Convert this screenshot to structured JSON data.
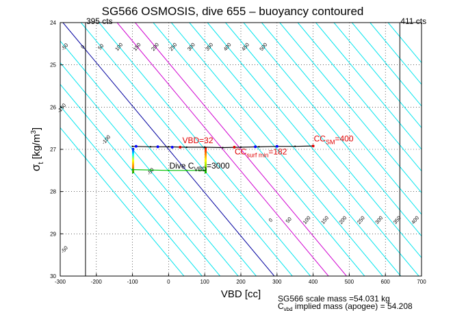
{
  "chart_data": {
    "type": "line",
    "title": "SG566 OSMOSIS, dive 655 – buoyancy contoured",
    "xlabel": "VBD [cc]",
    "ylabel": "σt [kg/m³]",
    "ylabel_parts": {
      "symbol": "σ",
      "sub": "t",
      "unit_pre": " [kg/m",
      "unit_sup": "3",
      "unit_post": "]"
    },
    "xlim": [
      -300,
      700
    ],
    "ylim": [
      24,
      30
    ],
    "y_reversed": true,
    "grid": true,
    "xticks": [
      -300,
      -200,
      -100,
      0,
      100,
      200,
      300,
      400,
      500,
      600,
      700
    ],
    "yticks": [
      24,
      25,
      26,
      27,
      28,
      29,
      30
    ],
    "contours": {
      "slope_cc_per_sigma": 97.5,
      "ref_sigma": 27,
      "levels": [
        -250,
        -200,
        -150,
        -100,
        -50,
        0,
        50,
        100,
        150,
        200,
        250,
        300,
        350,
        400,
        450,
        500,
        550,
        600,
        650,
        700,
        750,
        800,
        850,
        900
      ],
      "highlight": {
        "0": "#0000a0",
        "150": "#d000d0",
        "200": "#d000d0"
      },
      "default_color": "#00e5ee"
    },
    "top_labels": [
      "-200",
      "-150",
      "-100",
      "-50",
      "0",
      "50",
      "100",
      "150",
      "200",
      "250",
      "300",
      "350",
      "400",
      "450",
      "500"
    ],
    "bottom_labels": [
      "0",
      "50",
      "100",
      "150",
      "200",
      "250",
      "300",
      "350",
      "400",
      "450",
      "500"
    ],
    "left_labels": [
      "-200",
      "-150",
      "-100",
      "-50"
    ],
    "bottom_first_label": "-50",
    "vlines": [
      {
        "x": -230,
        "label": "395 cts"
      },
      {
        "x": 640,
        "label": "411 cts"
      }
    ],
    "series": [
      {
        "color": "#000000",
        "points": [
          [
            -100,
            26.93
          ],
          [
            -50,
            26.94
          ],
          [
            0,
            26.94
          ],
          [
            50,
            26.95
          ],
          [
            100,
            26.95
          ],
          [
            150,
            26.96
          ],
          [
            200,
            26.95
          ],
          [
            250,
            26.94
          ],
          [
            300,
            26.93
          ],
          [
            350,
            26.93
          ],
          [
            400,
            26.92
          ]
        ]
      },
      {
        "color": "#00c000",
        "points": [
          [
            -100,
            27.48
          ],
          [
            -50,
            27.49
          ],
          [
            0,
            27.5
          ],
          [
            50,
            27.5
          ],
          [
            100,
            27.5
          ]
        ]
      }
    ],
    "markers": [
      {
        "x": -90,
        "y": 26.93,
        "color": "#0000ff"
      },
      {
        "x": -30,
        "y": 26.94,
        "color": "#0000ff"
      },
      {
        "x": 10,
        "y": 26.95,
        "color": "#0000ff"
      },
      {
        "x": 32,
        "y": 26.95,
        "color": "#e00000"
      },
      {
        "x": 182,
        "y": 26.95,
        "color": "#e00000"
      },
      {
        "x": 240,
        "y": 26.94,
        "color": "#0000ff"
      },
      {
        "x": 300,
        "y": 26.93,
        "color": "#0000ff"
      },
      {
        "x": 400,
        "y": 26.92,
        "color": "#e00000"
      }
    ],
    "annotations": [
      {
        "main": "VBD",
        "sub": "",
        "value": "=32",
        "x": 38,
        "y": 26.85,
        "color": "red"
      },
      {
        "main": "CC",
        "sub": "surf min",
        "value": "=182",
        "x": 183,
        "y": 27.12,
        "color": "red"
      },
      {
        "main": "CC",
        "sub": "SM",
        "value": "=400",
        "x": 402,
        "y": 26.81,
        "color": "red"
      },
      {
        "main": "Dive C",
        "sub": "VBD",
        "value": "=3000",
        "x": 2,
        "y": 27.45,
        "color": "black"
      }
    ],
    "footer": {
      "line1": "SG566 scale mass =54.031 kg",
      "line2_main": "C",
      "line2_sub": "vbd",
      "line2_rest": " implied mass (apogee) = 54.208"
    }
  }
}
